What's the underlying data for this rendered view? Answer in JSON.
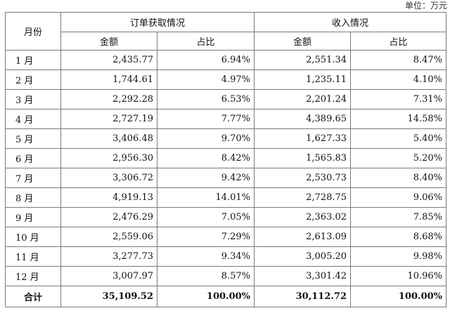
{
  "unit_label": "单位：万元",
  "headers": {
    "month": "月份",
    "orders_group": "订单获取情况",
    "revenue_group": "收入情况",
    "amount": "金额",
    "share": "占比"
  },
  "rows": [
    {
      "month": "1 月",
      "orders_amount": "2,435.77",
      "orders_share": "6.94%",
      "revenue_amount": "2,551.34",
      "revenue_share": "8.47%"
    },
    {
      "month": "2 月",
      "orders_amount": "1,744.61",
      "orders_share": "4.97%",
      "revenue_amount": "1,235.11",
      "revenue_share": "4.10%"
    },
    {
      "month": "3 月",
      "orders_amount": "2,292.28",
      "orders_share": "6.53%",
      "revenue_amount": "2,201.24",
      "revenue_share": "7.31%"
    },
    {
      "month": "4 月",
      "orders_amount": "2,727.19",
      "orders_share": "7.77%",
      "revenue_amount": "4,389.65",
      "revenue_share": "14.58%"
    },
    {
      "month": "5 月",
      "orders_amount": "3,406.48",
      "orders_share": "9.70%",
      "revenue_amount": "1,627.33",
      "revenue_share": "5.40%"
    },
    {
      "month": "6 月",
      "orders_amount": "2,956.30",
      "orders_share": "8.42%",
      "revenue_amount": "1,565.83",
      "revenue_share": "5.20%"
    },
    {
      "month": "7 月",
      "orders_amount": "3,306.72",
      "orders_share": "9.42%",
      "revenue_amount": "2,530.73",
      "revenue_share": "8.40%"
    },
    {
      "month": "8 月",
      "orders_amount": "4,919.13",
      "orders_share": "14.01%",
      "revenue_amount": "2,728.75",
      "revenue_share": "9.06%"
    },
    {
      "month": "9 月",
      "orders_amount": "2,476.29",
      "orders_share": "7.05%",
      "revenue_amount": "2,363.02",
      "revenue_share": "7.85%"
    },
    {
      "month": "10 月",
      "orders_amount": "2,559.06",
      "orders_share": "7.29%",
      "revenue_amount": "2,613.09",
      "revenue_share": "8.68%"
    },
    {
      "month": "11 月",
      "orders_amount": "3,277.73",
      "orders_share": "9.34%",
      "revenue_amount": "3,005.20",
      "revenue_share": "9.98%"
    },
    {
      "month": "12 月",
      "orders_amount": "3,007.97",
      "orders_share": "8.57%",
      "revenue_amount": "3,301.42",
      "revenue_share": "10.96%"
    }
  ],
  "total": {
    "label": "合计",
    "orders_amount": "35,109.52",
    "orders_share": "100.00%",
    "revenue_amount": "30,112.72",
    "revenue_share": "100.00%"
  }
}
